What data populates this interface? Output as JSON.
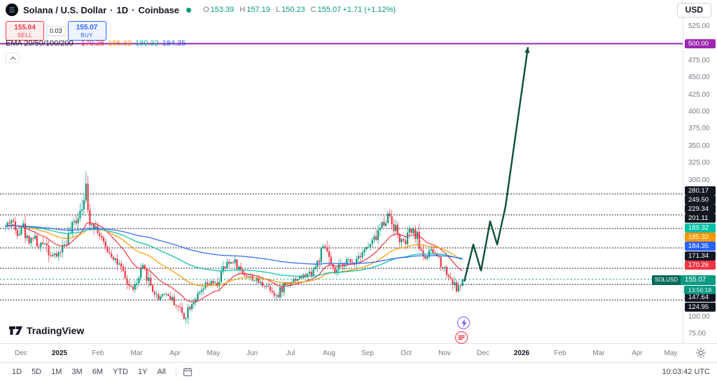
{
  "header": {
    "symbol_name": "Solana / U.S. Dollar",
    "separator": "·",
    "interval": "1D",
    "exchange": "Coinbase",
    "status_color": "#089981",
    "ohlc": [
      {
        "label": "O",
        "value": "153.39"
      },
      {
        "label": "H",
        "value": "157.19"
      },
      {
        "label": "L",
        "value": "150.23"
      },
      {
        "label": "C",
        "value": "155.07"
      }
    ],
    "change": "+1.71",
    "change_pct": "(+1.12%)",
    "value_color": "#089981",
    "currency_button": "USD"
  },
  "order_panel": {
    "sell": {
      "price": "155.04",
      "label": "SELL",
      "color": "#f23645"
    },
    "spread": "0.03",
    "buy": {
      "price": "155.07",
      "label": "BUY",
      "color": "#2962ff"
    }
  },
  "indicator_legend": {
    "name": "EMA 20/50/100/200",
    "values": [
      {
        "period": 20,
        "text": "170.26",
        "color": "#f23645"
      },
      {
        "period": 50,
        "text": "185.32",
        "color": "#ff9800"
      },
      {
        "period": 100,
        "text": "189.32",
        "color": "#00bfa5"
      },
      {
        "period": 200,
        "text": "184.35",
        "color": "#2962ff"
      }
    ]
  },
  "price_axis": {
    "ticks": [
      "525.00",
      "475.00",
      "450.00",
      "425.00",
      "400.00",
      "375.00",
      "350.00",
      "325.00",
      "300.00",
      "100.00",
      "75.00"
    ],
    "target_badge": {
      "value": "500.00",
      "bg": "#9c27b0"
    },
    "badges": [
      {
        "value": "280.17",
        "bg": "#131722"
      },
      {
        "value": "249.50",
        "bg": "#131722"
      },
      {
        "value": "229.34",
        "bg": "#131722"
      },
      {
        "value": "201.11",
        "bg": "#131722"
      },
      {
        "value": "189.32",
        "bg": "#00bfa5"
      },
      {
        "value": "185.32",
        "bg": "#ff9800"
      },
      {
        "value": "184.35",
        "bg": "#2962ff"
      },
      {
        "value": "171.34",
        "bg": "#131722"
      },
      {
        "value": "170.26",
        "bg": "#f23645"
      }
    ],
    "current": {
      "symbol": "SOLUSD",
      "value": "155.07",
      "countdown": "13:56:18",
      "bg": "#089981"
    },
    "lower_badges": [
      {
        "value": "147.64",
        "bg": "#131722"
      },
      {
        "value": "124.95",
        "bg": "#131722"
      }
    ]
  },
  "time_axis": {
    "labels": [
      {
        "label": "Dec",
        "strong": false
      },
      {
        "label": "2025",
        "strong": true
      },
      {
        "label": "Feb",
        "strong": false
      },
      {
        "label": "Mar",
        "strong": false
      },
      {
        "label": "Apr",
        "strong": false
      },
      {
        "label": "May",
        "strong": false
      },
      {
        "label": "Jun",
        "strong": false
      },
      {
        "label": "Jul",
        "strong": false
      },
      {
        "label": "Aug",
        "strong": false
      },
      {
        "label": "Sep",
        "strong": false
      },
      {
        "label": "Oct",
        "strong": false
      },
      {
        "label": "Nov",
        "strong": false
      },
      {
        "label": "Dec",
        "strong": false
      },
      {
        "label": "2026",
        "strong": true
      },
      {
        "label": "Feb",
        "strong": false
      },
      {
        "label": "Mar",
        "strong": false
      },
      {
        "label": "Apr",
        "strong": false
      },
      {
        "label": "May",
        "strong": false
      }
    ]
  },
  "toolbar": {
    "ranges": [
      "1D",
      "5D",
      "1M",
      "3M",
      "6M",
      "YTD",
      "1Y",
      "All"
    ],
    "clock": "10:03:42 UTC"
  },
  "branding": {
    "logo_text": "TradingView"
  },
  "chart_data": {
    "type": "candlestick",
    "symbol": "SOLUSD",
    "exchange": "Coinbase",
    "timeframe": "1D",
    "title": "Solana / U.S. Dollar · 1D · Coinbase",
    "current_ohlc": {
      "open": 153.39,
      "high": 157.19,
      "low": 150.23,
      "close": 155.07,
      "change": 1.71,
      "change_pct": 1.12
    },
    "y_axis": {
      "min": 75,
      "max": 525,
      "tick_step": 25,
      "grid": false
    },
    "up_color": "#089981",
    "down_color": "#f23645",
    "price_path_note": "approx daily close path read off chart; x = plot px (Dec 2024 - Nov 2025), value = price USD",
    "price_path": [
      [
        8,
        232
      ],
      [
        16,
        243
      ],
      [
        24,
        222
      ],
      [
        32,
        236
      ],
      [
        40,
        210
      ],
      [
        48,
        218
      ],
      [
        56,
        200
      ],
      [
        64,
        212
      ],
      [
        72,
        192
      ],
      [
        80,
        188
      ],
      [
        88,
        200
      ],
      [
        96,
        214
      ],
      [
        104,
        232
      ],
      [
        112,
        252
      ],
      [
        118,
        270
      ],
      [
        122,
        292
      ],
      [
        126,
        248
      ],
      [
        132,
        238
      ],
      [
        140,
        228
      ],
      [
        148,
        204
      ],
      [
        156,
        196
      ],
      [
        164,
        186
      ],
      [
        172,
        170
      ],
      [
        180,
        152
      ],
      [
        188,
        141
      ],
      [
        196,
        148
      ],
      [
        204,
        172
      ],
      [
        210,
        160
      ],
      [
        218,
        140
      ],
      [
        226,
        127
      ],
      [
        234,
        136
      ],
      [
        242,
        130
      ],
      [
        250,
        120
      ],
      [
        258,
        110
      ],
      [
        263,
        98
      ],
      [
        270,
        116
      ],
      [
        278,
        126
      ],
      [
        286,
        134
      ],
      [
        294,
        146
      ],
      [
        302,
        150
      ],
      [
        310,
        147
      ],
      [
        318,
        168
      ],
      [
        326,
        178
      ],
      [
        334,
        183
      ],
      [
        342,
        170
      ],
      [
        350,
        163
      ],
      [
        358,
        158
      ],
      [
        366,
        153
      ],
      [
        374,
        148
      ],
      [
        382,
        146
      ],
      [
        390,
        138
      ],
      [
        397,
        128
      ],
      [
        404,
        146
      ],
      [
        412,
        151
      ],
      [
        420,
        155
      ],
      [
        428,
        158
      ],
      [
        436,
        160
      ],
      [
        444,
        165
      ],
      [
        452,
        176
      ],
      [
        460,
        196
      ],
      [
        466,
        203
      ],
      [
        472,
        172
      ],
      [
        478,
        164
      ],
      [
        486,
        174
      ],
      [
        494,
        184
      ],
      [
        502,
        178
      ],
      [
        510,
        188
      ],
      [
        518,
        198
      ],
      [
        526,
        202
      ],
      [
        534,
        212
      ],
      [
        542,
        228
      ],
      [
        550,
        243
      ],
      [
        556,
        251
      ],
      [
        562,
        236
      ],
      [
        570,
        215
      ],
      [
        578,
        206
      ],
      [
        586,
        226
      ],
      [
        594,
        221
      ],
      [
        602,
        196
      ],
      [
        608,
        186
      ],
      [
        616,
        196
      ],
      [
        624,
        190
      ],
      [
        632,
        176
      ],
      [
        640,
        162
      ],
      [
        646,
        152
      ],
      [
        652,
        140
      ],
      [
        657,
        146
      ],
      [
        663,
        155
      ]
    ],
    "levels": [
      280.17,
      249.5,
      229.34,
      201.11,
      171.34,
      147.64,
      124.95
    ],
    "level_line_color": "#1c2030",
    "target_line": {
      "price": 500,
      "color": "#9c27b0"
    },
    "current_price": 155.07,
    "current_price_color": "#089981",
    "ema_periods": [
      20,
      50,
      100,
      200
    ],
    "ema_values": {
      "ema20": 170.26,
      "ema50": 185.32,
      "ema100": 189.32,
      "ema200": 184.35
    },
    "projection": {
      "color": "#0f5132",
      "points": [
        [
          663,
          152
        ],
        [
          676,
          206
        ],
        [
          687,
          168
        ],
        [
          700,
          240
        ],
        [
          710,
          206
        ],
        [
          722,
          262
        ],
        [
          754,
          495
        ]
      ]
    }
  }
}
